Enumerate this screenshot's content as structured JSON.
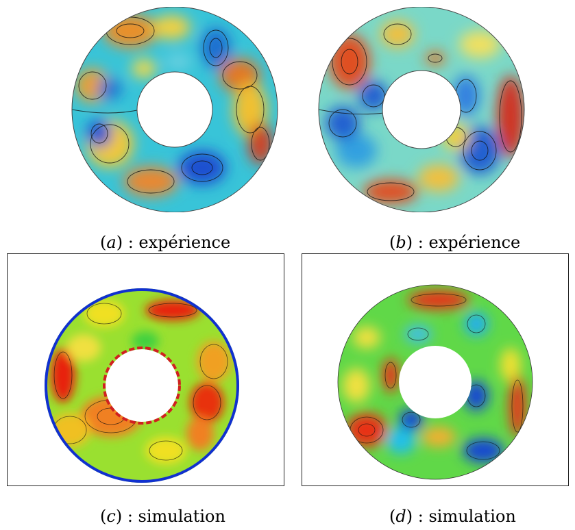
{
  "figure": {
    "panels": [
      {
        "id": "a",
        "label": "a",
        "paren_open": "(",
        "paren_close": ")",
        "separator": " : ",
        "caption": "expérience"
      },
      {
        "id": "b",
        "label": "b",
        "paren_open": "(",
        "paren_close": ")",
        "separator": " : ",
        "caption": "expérience"
      },
      {
        "id": "c",
        "label": "c",
        "paren_open": "(",
        "paren_close": ")",
        "separator": " : ",
        "caption": "simulation"
      },
      {
        "id": "d",
        "label": "d",
        "paren_open": "(",
        "paren_close": ")",
        "separator": " : ",
        "caption": "simulation"
      }
    ]
  }
}
